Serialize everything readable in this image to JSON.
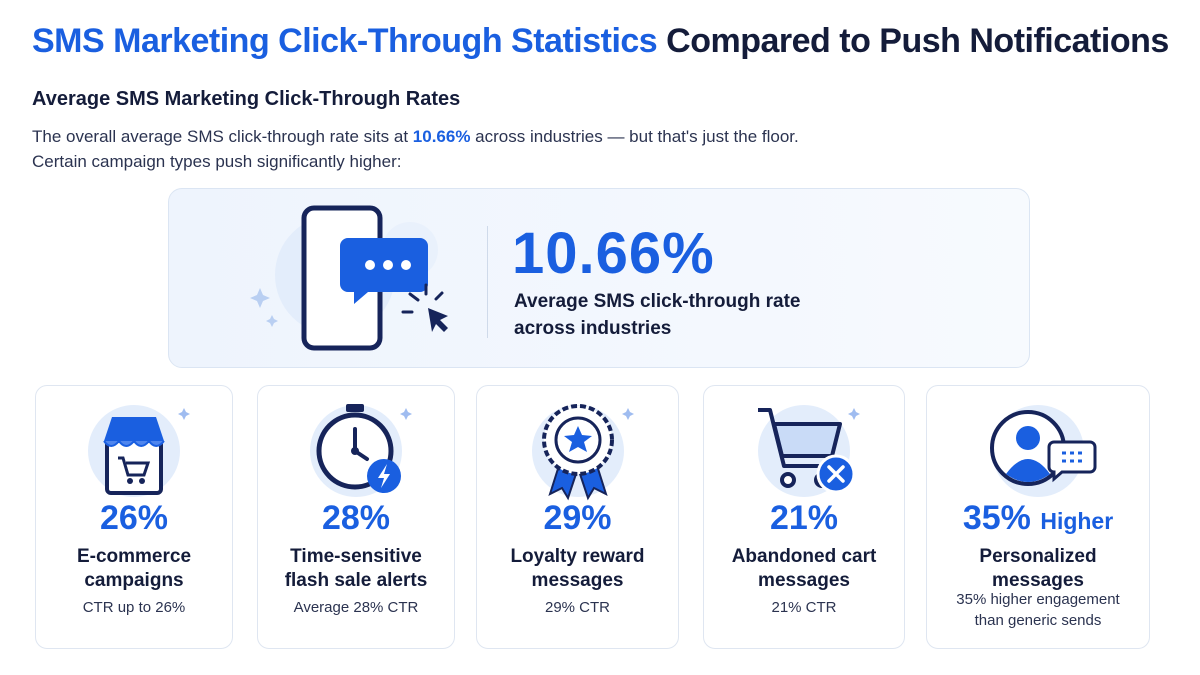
{
  "header": {
    "title_highlight": "SMS Marketing Click-Through Statistics",
    "title_rest": "Compared to Push Notifications"
  },
  "section": {
    "heading": "Average SMS Marketing Click-Through Rates",
    "intro_before": "The overall average SMS click-through rate sits at ",
    "intro_highlight": "10.66%",
    "intro_after": " across industries — but that's just the floor.",
    "intro_line2": "Certain campaign types push significantly higher:"
  },
  "hero": {
    "value": "10.66%",
    "label_lines": [
      "Average SMS click-through rate",
      "across industries"
    ]
  },
  "cards": [
    {
      "value": "26%",
      "title_lines": [
        "E-commerce",
        "campaigns"
      ],
      "desc_lines": [
        "CTR up to 26%"
      ]
    },
    {
      "value": "28%",
      "title_lines": [
        "Time-sensitive",
        "flash sale alerts"
      ],
      "desc_lines": [
        "Average 28% CTR"
      ]
    },
    {
      "value": "29%",
      "title_lines": [
        "Loyalty reward",
        "messages"
      ],
      "desc_lines": [
        "29% CTR"
      ]
    },
    {
      "value": "21%",
      "title_lines": [
        "Abandoned cart",
        "messages"
      ],
      "desc_lines": [
        "21% CTR"
      ]
    },
    {
      "value": "35%",
      "value_suffix": "Higher",
      "title_lines": [
        "Personalized",
        "messages"
      ],
      "desc_lines": [
        "35% higher engagement",
        "than generic sends"
      ]
    }
  ]
}
